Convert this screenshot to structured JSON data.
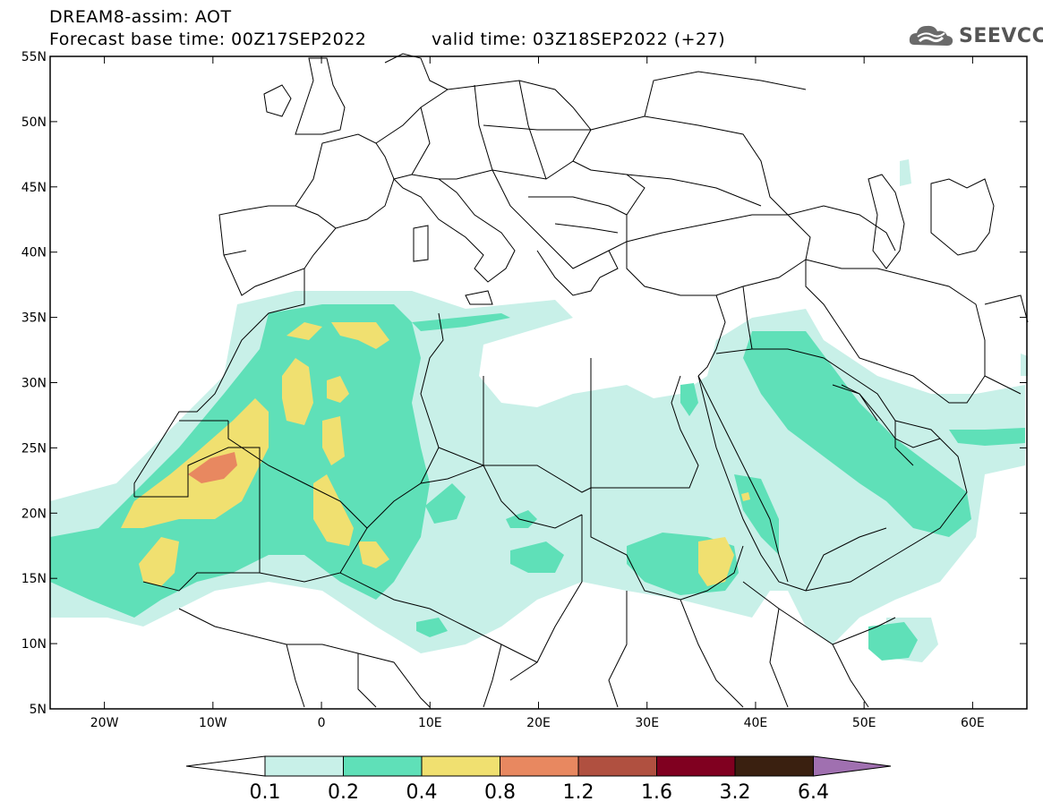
{
  "header": {
    "title": "DREAM8-assim: AOT",
    "base_time": "Forecast base time: 00Z17SEP2022",
    "valid_time": "valid time: 03Z18SEP2022 (+27)",
    "logo_text": "SEEVCCC"
  },
  "map": {
    "lon_range": [
      -25,
      65
    ],
    "lat_range": [
      5,
      55
    ],
    "lat_ticks": [
      "5N",
      "10N",
      "15N",
      "20N",
      "25N",
      "30N",
      "35N",
      "40N",
      "45N",
      "50N",
      "55N"
    ],
    "lon_ticks": [
      "20W",
      "10W",
      "0",
      "10E",
      "20E",
      "30E",
      "40E",
      "50E",
      "60E"
    ]
  },
  "colorbar": {
    "levels": [
      "0.1",
      "0.2",
      "0.4",
      "0.8",
      "1.2",
      "1.6",
      "3.2",
      "6.4"
    ],
    "colors": [
      "#ffffff",
      "#c8f0e8",
      "#5fe0b8",
      "#f0e070",
      "#e88860",
      "#b05040",
      "#800020",
      "#3a2010",
      "#a070b0"
    ]
  }
}
